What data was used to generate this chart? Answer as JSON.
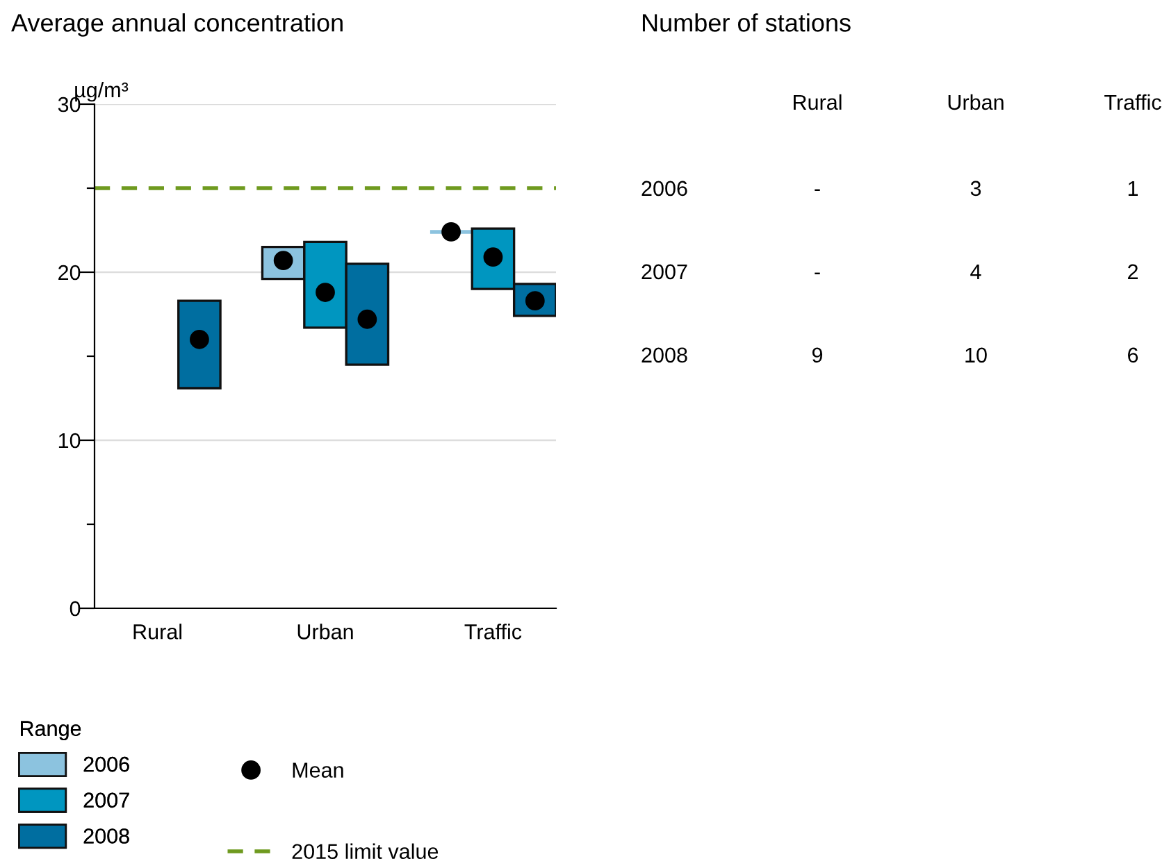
{
  "chart_data": [
    {
      "type": "bar",
      "title": "Average annual concentration",
      "ylabel": "µg/m³",
      "categories": [
        "Rural",
        "Urban",
        "Traffic"
      ],
      "series": [
        {
          "name": "2006",
          "color": "#8cc3df",
          "base": [
            null,
            19.6,
            22.4
          ],
          "values": [
            null,
            1.9,
            0
          ]
        },
        {
          "name": "2007",
          "color": "#0096c0",
          "base": [
            null,
            16.7,
            19.0
          ],
          "values": [
            null,
            5.1,
            3.6
          ]
        },
        {
          "name": "2008",
          "color": "#006ea0",
          "base": [
            13.1,
            14.5,
            17.4
          ],
          "values": [
            5.2,
            6.0,
            1.9
          ]
        },
        {
          "name": "Mean",
          "type": "scatter",
          "color": "#000000",
          "marker": "circle",
          "x": [
            "Rural",
            "Rural",
            "Rural",
            "Urban",
            "Urban",
            "Urban",
            "Traffic",
            "Traffic",
            "Traffic"
          ],
          "values": [
            null,
            null,
            16.0,
            20.7,
            18.8,
            17.2,
            22.4,
            20.9,
            18.3
          ]
        }
      ],
      "ylim": [
        0,
        30
      ],
      "yticks": [
        0,
        {
          "value": 5,
          "label": null
        },
        10,
        {
          "value": 15,
          "label": null
        },
        20,
        {
          "value": 25,
          "label": null
        },
        30
      ],
      "grid": "y",
      "legend": "bottom left",
      "legend_title": "Range",
      "ref_lines": [
        {
          "axis": "y",
          "value": 25,
          "label": "2015 limit value",
          "color": "#6f9a1f",
          "line_style": "dashed"
        }
      ]
    },
    {
      "type": "other",
      "title": "Number of stations",
      "categories": [
        "Rural",
        "Urban",
        "Traffic"
      ],
      "y_categories": [
        "2006",
        "2007",
        "2008"
      ],
      "cell_labels": [
        [
          "-",
          "3",
          "1"
        ],
        [
          "-",
          "4",
          "2"
        ],
        [
          "9",
          "10",
          "6"
        ]
      ]
    }
  ]
}
